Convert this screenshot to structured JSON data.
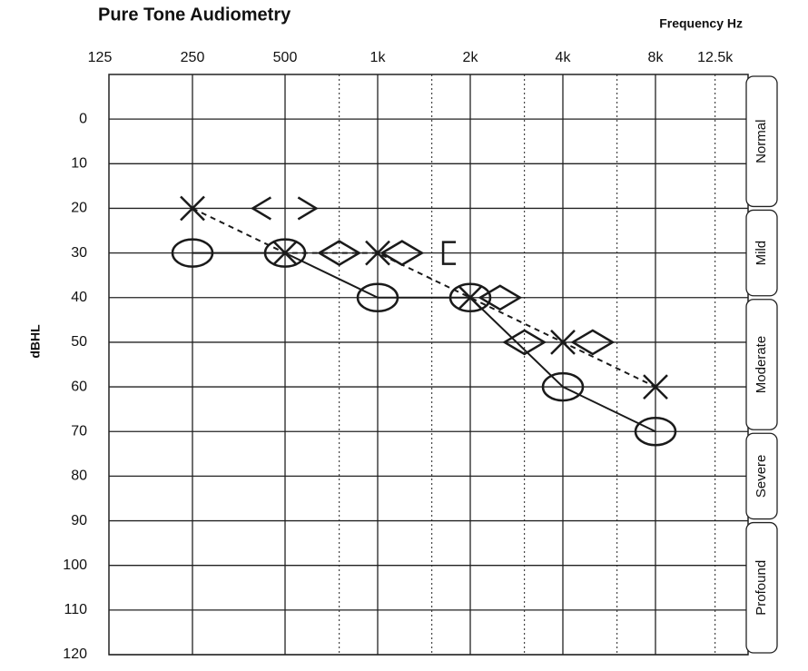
{
  "chart_data": {
    "type": "line",
    "title": "Pure Tone Audiometry",
    "x_label": "Frequency Hz",
    "y_label": "dBHL",
    "xscale": "log",
    "xlim": [
      125,
      16000
    ],
    "xticks": [
      125,
      250,
      500,
      {
        "value": 1000,
        "label": "1k"
      },
      {
        "value": 2000,
        "label": "2k"
      },
      {
        "value": 4000,
        "label": "4k"
      },
      {
        "value": 8000,
        "label": "8k"
      },
      {
        "value": 12500,
        "label": "12.5k"
      }
    ],
    "xminor": [
      750,
      1500,
      3000,
      6000
    ],
    "ylim": [
      -10,
      120
    ],
    "yinverted": true,
    "yticks": [
      0,
      10,
      20,
      30,
      40,
      50,
      60,
      70,
      80,
      90,
      100,
      110,
      120
    ],
    "grid": true,
    "bands": [
      {
        "label": "Normal",
        "from": -10,
        "to": 20
      },
      {
        "label": "Mild",
        "from": 20,
        "to": 40
      },
      {
        "label": "Moderate",
        "from": 40,
        "to": 70
      },
      {
        "label": "Severe",
        "from": 70,
        "to": 90
      },
      {
        "label": "Profound",
        "from": 90,
        "to": 120
      }
    ],
    "series": [
      {
        "marker": "o",
        "line": "solid",
        "color": "#1a1a1a",
        "x": [
          250,
          500,
          1000,
          2000,
          4000,
          8000
        ],
        "values": [
          30,
          30,
          40,
          40,
          60,
          70
        ]
      },
      {
        "marker": "x",
        "line": "dashed",
        "color": "#1a1a1a",
        "x": [
          250,
          500,
          1000,
          2000,
          4000,
          8000
        ],
        "values": [
          20,
          30,
          30,
          40,
          50,
          60
        ]
      },
      {
        "marker": "<",
        "line": "none",
        "color": "#1a1a1a",
        "x": [
          420
        ],
        "values": [
          20
        ]
      },
      {
        "marker": ">",
        "line": "none",
        "color": "#1a1a1a",
        "x": [
          590
        ],
        "values": [
          20
        ]
      },
      {
        "marker": "diamond",
        "line": "none",
        "color": "#1a1a1a",
        "x": [
          750,
          1200,
          2500,
          3000,
          5000
        ],
        "values": [
          30,
          30,
          40,
          50,
          50
        ]
      },
      {
        "marker": "[",
        "line": "none",
        "color": "#1a1a1a",
        "x": [
          1700
        ],
        "values": [
          30
        ]
      }
    ]
  }
}
